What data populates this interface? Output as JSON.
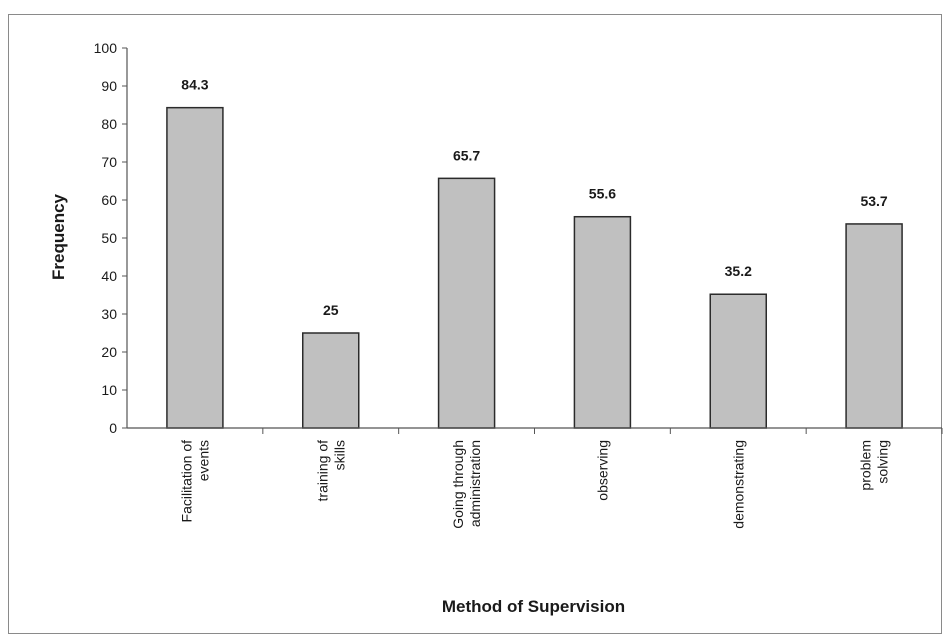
{
  "chart_data": {
    "type": "bar",
    "categories": [
      [
        "Facilitation of",
        "events"
      ],
      [
        "training of",
        "skills"
      ],
      [
        "Going through",
        "administration"
      ],
      [
        "observing"
      ],
      [
        "demonstrating"
      ],
      [
        "problem",
        "solving"
      ]
    ],
    "values": [
      84.3,
      25,
      65.7,
      55.6,
      35.2,
      53.7
    ],
    "data_labels": [
      "84.3",
      "25",
      "65.7",
      "55.6",
      "35.2",
      "53.7"
    ],
    "xlabel": "Method of Supervision",
    "ylabel": "Frequency",
    "ylim": [
      0,
      100
    ],
    "yticks": [
      0,
      10,
      20,
      30,
      40,
      50,
      60,
      70,
      80,
      90,
      100
    ],
    "grid": false,
    "legend": "none",
    "colors": {
      "bar_fill": "#c0c0c0",
      "bar_stroke": "#2b2b2b",
      "axis": "#555555"
    }
  }
}
